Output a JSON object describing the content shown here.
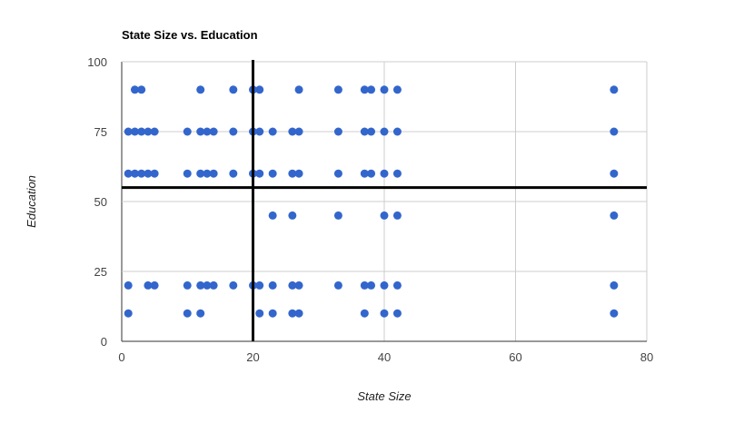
{
  "chart_data": {
    "type": "scatter",
    "title": "State Size vs. Education",
    "xlabel": "State Size",
    "ylabel": "Education",
    "xlim": [
      0,
      80
    ],
    "ylim": [
      0,
      100
    ],
    "xticks": [
      0,
      20,
      40,
      60,
      80
    ],
    "yticks": [
      0,
      25,
      50,
      75,
      100
    ],
    "x_tick_labels": [
      "0",
      "20",
      "40",
      "60",
      "80"
    ],
    "y_tick_labels": [
      "0",
      "25",
      "50",
      "75",
      "100"
    ],
    "grid": true,
    "legend": "none",
    "point_color": "#3366cc",
    "reference_lines": {
      "vertical_x": 20,
      "horizontal_y": 55,
      "color": "#000000"
    },
    "points": [
      [
        2,
        90
      ],
      [
        3,
        90
      ],
      [
        12,
        90
      ],
      [
        17,
        90
      ],
      [
        20,
        90
      ],
      [
        21,
        90
      ],
      [
        27,
        90
      ],
      [
        33,
        90
      ],
      [
        37,
        90
      ],
      [
        38,
        90
      ],
      [
        40,
        90
      ],
      [
        42,
        90
      ],
      [
        75,
        90
      ],
      [
        1,
        75
      ],
      [
        2,
        75
      ],
      [
        3,
        75
      ],
      [
        4,
        75
      ],
      [
        5,
        75
      ],
      [
        10,
        75
      ],
      [
        12,
        75
      ],
      [
        13,
        75
      ],
      [
        14,
        75
      ],
      [
        17,
        75
      ],
      [
        20,
        75
      ],
      [
        21,
        75
      ],
      [
        23,
        75
      ],
      [
        26,
        75
      ],
      [
        27,
        75
      ],
      [
        33,
        75
      ],
      [
        37,
        75
      ],
      [
        38,
        75
      ],
      [
        40,
        75
      ],
      [
        42,
        75
      ],
      [
        75,
        75
      ],
      [
        1,
        60
      ],
      [
        2,
        60
      ],
      [
        3,
        60
      ],
      [
        4,
        60
      ],
      [
        5,
        60
      ],
      [
        10,
        60
      ],
      [
        12,
        60
      ],
      [
        13,
        60
      ],
      [
        14,
        60
      ],
      [
        17,
        60
      ],
      [
        20,
        60
      ],
      [
        21,
        60
      ],
      [
        23,
        60
      ],
      [
        26,
        60
      ],
      [
        27,
        60
      ],
      [
        33,
        60
      ],
      [
        37,
        60
      ],
      [
        38,
        60
      ],
      [
        40,
        60
      ],
      [
        42,
        60
      ],
      [
        75,
        60
      ],
      [
        23,
        45
      ],
      [
        26,
        45
      ],
      [
        33,
        45
      ],
      [
        40,
        45
      ],
      [
        42,
        45
      ],
      [
        75,
        45
      ],
      [
        1,
        20
      ],
      [
        4,
        20
      ],
      [
        5,
        20
      ],
      [
        10,
        20
      ],
      [
        12,
        20
      ],
      [
        13,
        20
      ],
      [
        14,
        20
      ],
      [
        17,
        20
      ],
      [
        20,
        20
      ],
      [
        21,
        20
      ],
      [
        23,
        20
      ],
      [
        26,
        20
      ],
      [
        27,
        20
      ],
      [
        33,
        20
      ],
      [
        37,
        20
      ],
      [
        38,
        20
      ],
      [
        40,
        20
      ],
      [
        42,
        20
      ],
      [
        75,
        20
      ],
      [
        1,
        10
      ],
      [
        10,
        10
      ],
      [
        12,
        10
      ],
      [
        21,
        10
      ],
      [
        23,
        10
      ],
      [
        26,
        10
      ],
      [
        27,
        10
      ],
      [
        37,
        10
      ],
      [
        40,
        10
      ],
      [
        42,
        10
      ],
      [
        75,
        10
      ]
    ]
  }
}
